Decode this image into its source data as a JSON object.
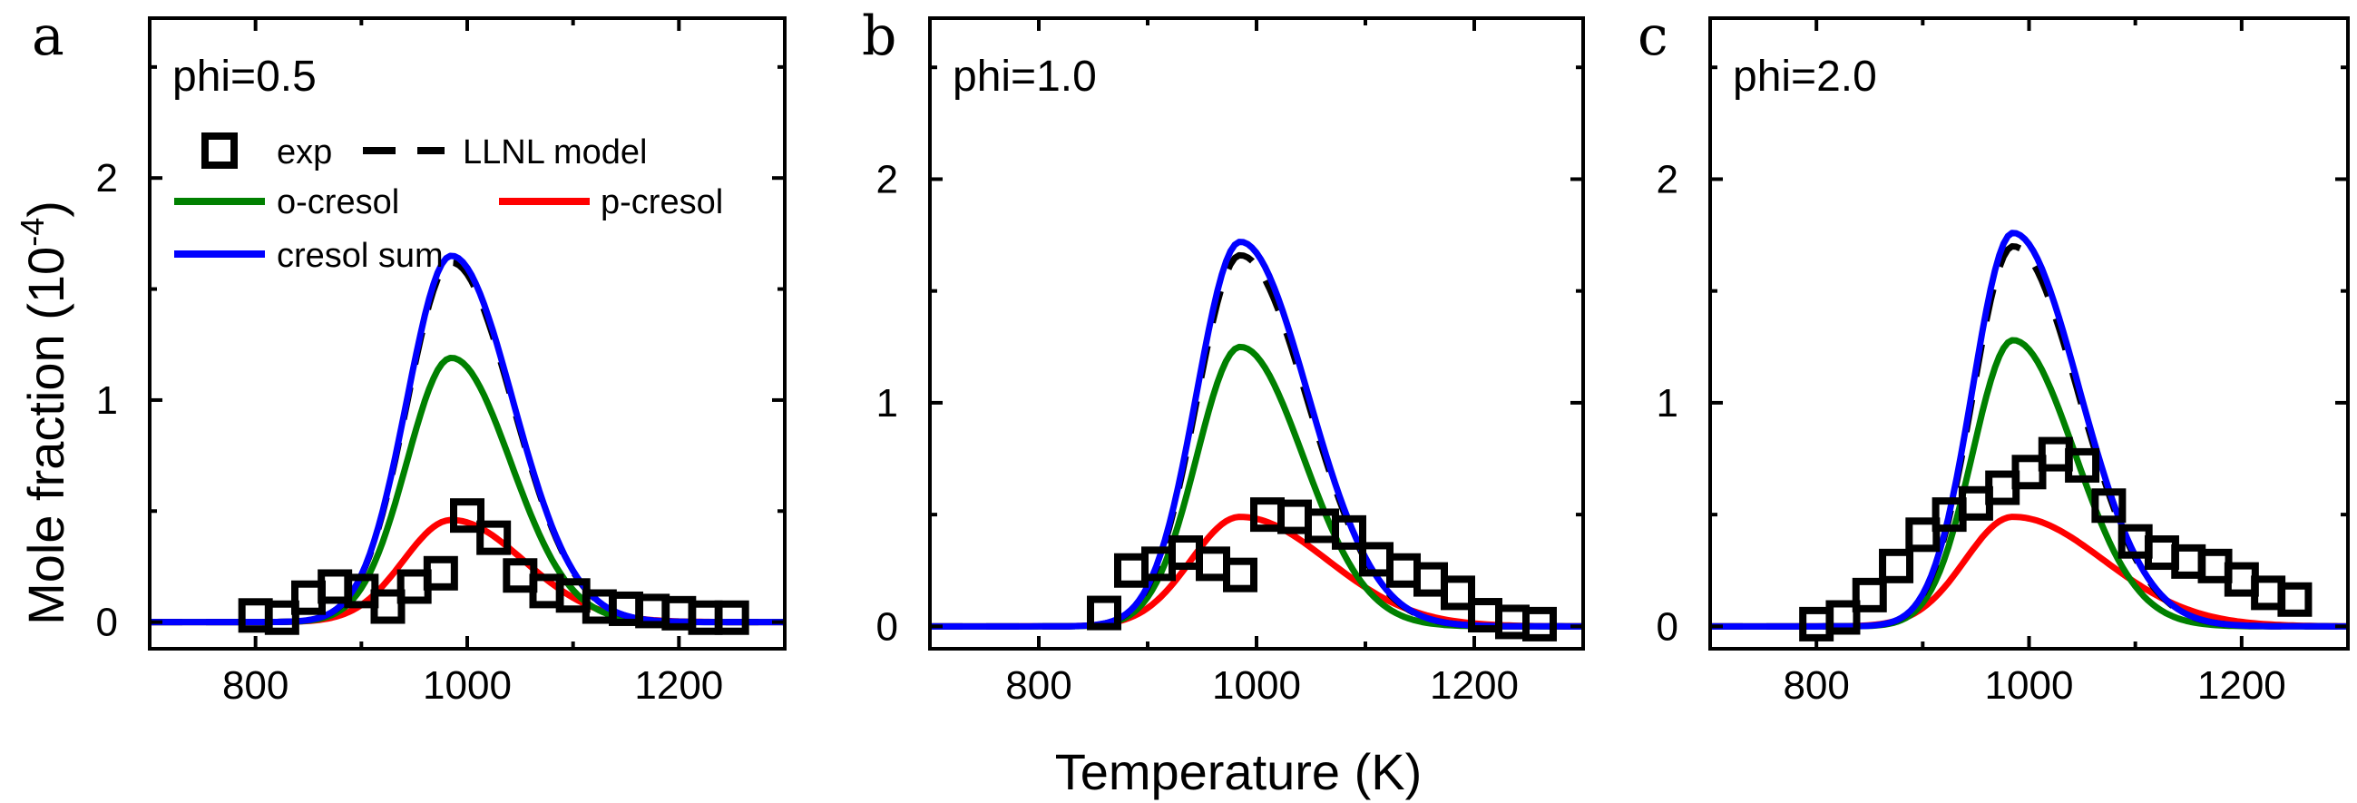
{
  "figure": {
    "ylabel_text": "Mole fraction (10",
    "ylabel_exp": "-4",
    "ylabel_close": ")",
    "xlabel": "Temperature (K)",
    "colors": {
      "exp": "#000000",
      "llnl": "#000000",
      "o_cresol": "#008000",
      "p_cresol": "#ff0000",
      "cresol_sum": "#0000ff"
    }
  },
  "legend": {
    "exp": "exp",
    "llnl": "LLNL model",
    "o_cresol": "o-cresol",
    "p_cresol": "p-cresol",
    "cresol_sum": "cresol sum"
  },
  "chart_data": [
    {
      "type": "line",
      "panel_label": "a",
      "title": "phi=0.5",
      "xlim": [
        700,
        1300
      ],
      "ylim": [
        -0.12,
        2.72
      ],
      "xticks": [
        800,
        1000,
        1200
      ],
      "yticks": [
        0,
        1,
        2
      ],
      "exp": {
        "x": [
          800,
          825,
          850,
          875,
          900,
          925,
          950,
          975,
          1000,
          1025,
          1050,
          1075,
          1100,
          1125,
          1150,
          1175,
          1200,
          1225,
          1250
        ],
        "y": [
          0.03,
          0.02,
          0.11,
          0.16,
          0.14,
          0.07,
          0.16,
          0.22,
          0.48,
          0.38,
          0.21,
          0.14,
          0.12,
          0.07,
          0.06,
          0.05,
          0.04,
          0.02,
          0.02
        ]
      },
      "model": {
        "peak_T": 985,
        "cresol_sum": {
          "peak": 1.65,
          "sigma_low": 42,
          "sigma_high": 58
        },
        "llnl": {
          "peak": 1.62,
          "sigma_low": 42,
          "sigma_high": 58
        },
        "o_cresol": {
          "peak": 1.19,
          "sigma_low": 42,
          "sigma_high": 56
        },
        "p_cresol": {
          "peak": 0.46,
          "sigma_low": 45,
          "sigma_high": 68
        }
      }
    },
    {
      "type": "line",
      "panel_label": "b",
      "title": "phi=1.0",
      "xlim": [
        700,
        1300
      ],
      "ylim": [
        -0.1,
        2.72
      ],
      "xticks": [
        800,
        1000,
        1200
      ],
      "yticks": [
        0,
        1,
        2
      ],
      "exp": {
        "x": [
          860,
          885,
          910,
          935,
          960,
          985,
          1010,
          1035,
          1060,
          1085,
          1110,
          1135,
          1160,
          1185,
          1210,
          1235,
          1260
        ],
        "y": [
          0.06,
          0.25,
          0.28,
          0.33,
          0.28,
          0.23,
          0.5,
          0.49,
          0.45,
          0.42,
          0.3,
          0.25,
          0.21,
          0.15,
          0.05,
          0.02,
          0.01
        ]
      },
      "model": {
        "peak_T": 985,
        "cresol_sum": {
          "peak": 1.72,
          "sigma_low": 40,
          "sigma_high": 62
        },
        "llnl": {
          "peak": 1.66,
          "sigma_low": 40,
          "sigma_high": 62
        },
        "o_cresol": {
          "peak": 1.25,
          "sigma_low": 40,
          "sigma_high": 58
        },
        "p_cresol": {
          "peak": 0.49,
          "sigma_low": 45,
          "sigma_high": 80
        }
      }
    },
    {
      "type": "line",
      "panel_label": "c",
      "title": "phi=2.0",
      "xlim": [
        700,
        1300
      ],
      "ylim": [
        -0.1,
        2.72
      ],
      "xticks": [
        800,
        1000,
        1200
      ],
      "yticks": [
        0,
        1,
        2
      ],
      "exp": {
        "x": [
          800,
          825,
          850,
          875,
          900,
          925,
          950,
          975,
          1000,
          1025,
          1050,
          1075,
          1100,
          1125,
          1150,
          1175,
          1200,
          1225,
          1250
        ],
        "y": [
          0.01,
          0.04,
          0.14,
          0.27,
          0.41,
          0.5,
          0.55,
          0.62,
          0.69,
          0.77,
          0.72,
          0.54,
          0.38,
          0.33,
          0.29,
          0.27,
          0.21,
          0.15,
          0.12
        ]
      },
      "model": {
        "peak_T": 985,
        "cresol_sum": {
          "peak": 1.76,
          "sigma_low": 38,
          "sigma_high": 62
        },
        "llnl": {
          "peak": 1.7,
          "sigma_low": 38,
          "sigma_high": 62
        },
        "o_cresol": {
          "peak": 1.28,
          "sigma_low": 38,
          "sigma_high": 58
        },
        "p_cresol": {
          "peak": 0.49,
          "sigma_low": 45,
          "sigma_high": 85
        }
      }
    }
  ]
}
